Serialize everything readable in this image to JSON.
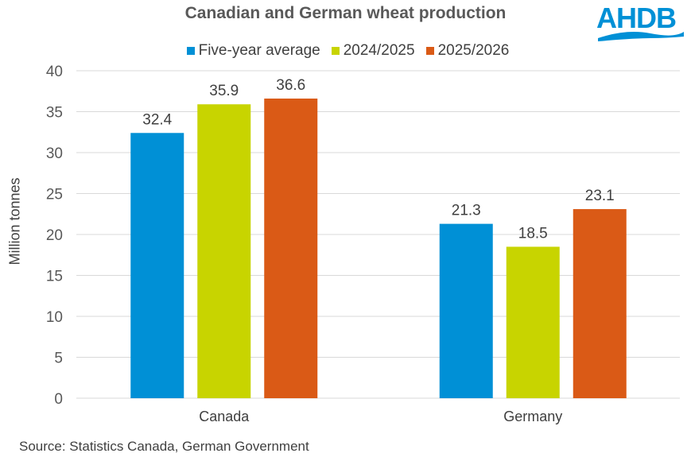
{
  "chart_data": {
    "type": "bar",
    "title": "Canadian and German wheat production",
    "categories": [
      "Canada",
      "Germany"
    ],
    "series": [
      {
        "name": "Five-year average",
        "values": [
          32.4,
          21.3
        ],
        "color": "#0090D6"
      },
      {
        "name": "2024/2025",
        "values": [
          35.9,
          18.5
        ],
        "color": "#C8D400"
      },
      {
        "name": "2025/2026",
        "values": [
          36.6,
          23.1
        ],
        "color": "#DA5A16"
      }
    ],
    "xlabel": "",
    "ylabel": "Million tonnes",
    "ylim": [
      0,
      40
    ],
    "yticks": [
      0,
      5,
      10,
      15,
      20,
      25,
      30,
      35,
      40
    ],
    "grid": true,
    "legend": "top",
    "data_labels": true
  },
  "source": "Source: Statistics Canada, German Government",
  "logo": {
    "text": "AHDB",
    "color": "#0090D6"
  }
}
